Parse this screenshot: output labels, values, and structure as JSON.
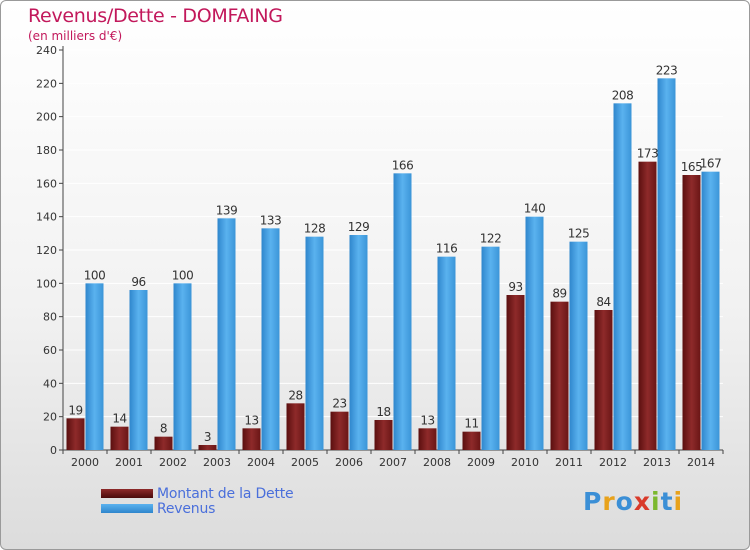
{
  "title": "Revenus/Dette - DOMFAING",
  "subtitle": "(en milliers d'€)",
  "logo_text": "Proxiti",
  "colors": {
    "dette": "#7a1f1f",
    "revenus": "#4aa3e3",
    "axis": "#444444",
    "grid": "#ffffff",
    "title": "#c2185b",
    "legend_text": "#4a6fdb"
  },
  "chart_data": {
    "type": "bar",
    "title": "Revenus/Dette - DOMFAING",
    "subtitle": "(en milliers d'€)",
    "categories": [
      "2000",
      "2001",
      "2002",
      "2003",
      "2004",
      "2005",
      "2006",
      "2007",
      "2008",
      "2009",
      "2010",
      "2011",
      "2012",
      "2013",
      "2014"
    ],
    "series": [
      {
        "name": "Montant de la Dette",
        "values": [
          19,
          14,
          8,
          3,
          13,
          28,
          23,
          18,
          13,
          11,
          93,
          89,
          84,
          173,
          165
        ]
      },
      {
        "name": "Revenus",
        "values": [
          100,
          96,
          100,
          139,
          133,
          128,
          129,
          166,
          116,
          122,
          140,
          125,
          208,
          223,
          167
        ]
      }
    ],
    "ylim": [
      0,
      240
    ],
    "yticks": [
      0,
      20,
      40,
      60,
      80,
      100,
      120,
      140,
      160,
      180,
      200,
      220,
      240
    ],
    "grid": true,
    "legend_position": "bottom-left"
  }
}
